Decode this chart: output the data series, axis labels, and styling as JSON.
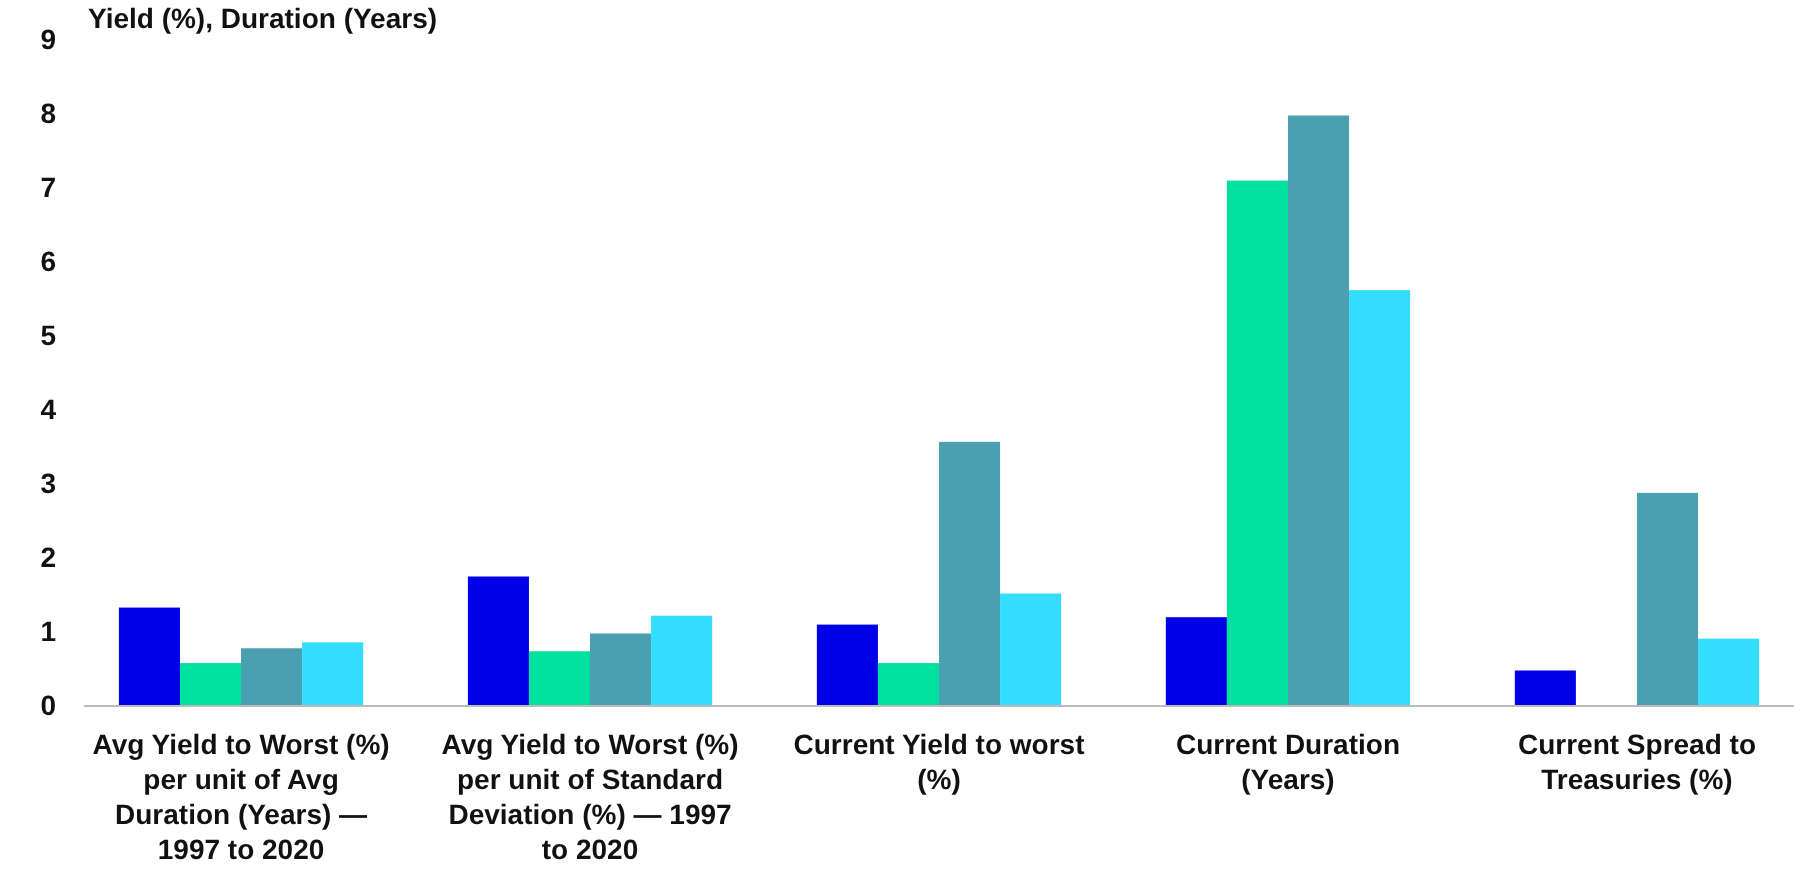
{
  "chart_data": {
    "type": "bar",
    "ylabel": "Yield (%), Duration (Years)",
    "categories": [
      "Avg Yield to Worst (%) per unit of Avg Duration (Years) — 1997 to 2020",
      "Avg Yield to Worst (%) per unit of Standard Deviation (%) — 1997 to 2020",
      "Current Yield to worst (%)",
      "Current Duration (Years)",
      "Current Spread to Treasuries (%)"
    ],
    "series": [
      {
        "color": "#0000e6",
        "values": [
          1.33,
          1.75,
          1.1,
          1.2,
          0.48
        ]
      },
      {
        "color": "#00e0a0",
        "values": [
          0.58,
          0.74,
          0.58,
          7.1,
          null
        ]
      },
      {
        "color": "#4a9fb0",
        "values": [
          0.78,
          0.98,
          3.57,
          7.98,
          2.88
        ]
      },
      {
        "color": "#33ddff",
        "values": [
          0.86,
          1.22,
          1.52,
          5.62,
          0.91
        ]
      }
    ],
    "ylim": [
      0,
      9
    ],
    "yticks": [
      0,
      1,
      2,
      3,
      4,
      5,
      6,
      7,
      8,
      9
    ],
    "grid": false
  }
}
